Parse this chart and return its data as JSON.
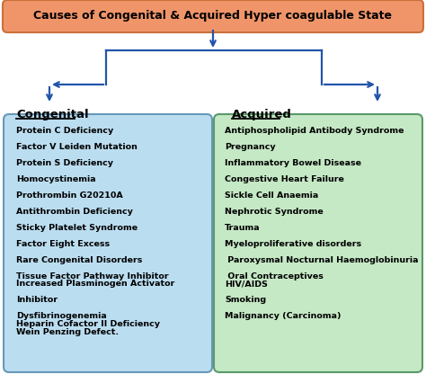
{
  "title": "Causes of Congenital & Acquired Hyper coagulable State",
  "title_bg": "#F0956A",
  "title_border": "#C8713A",
  "congenital_header": "Congenital",
  "acquired_header": "Acquired",
  "congenital_items": [
    "Protein C Deficiency",
    "Factor V Leiden Mutation",
    "Protein S Deficiency",
    "Homocystinemia",
    "Prothrombin G20210A",
    "Antithrombin Deficiency",
    "Sticky Platelet Syndrome",
    "Factor Eight Excess",
    "Rare Congenital Disorders",
    "Tissue Factor Pathway Inhibitor\nIncreased Plasminogen Activator",
    "Inhibitor",
    "Dysfibrinogenemia\nHeparin Cofactor II Deficiency\nWein Penzing Defect."
  ],
  "acquired_items": [
    "Antiphospholipid Antibody Syndrome",
    "Pregnancy",
    "Inflammatory Bowel Disease",
    "Congestive Heart Failure",
    "Sickle Cell Anaemia",
    "Nephrotic Syndrome",
    "Trauma",
    "Myeloproliferative disorders",
    " Paroxysmal Nocturnal Haemoglobinuria",
    " Oral Contraceptives\nHIV/AIDS",
    "Smoking",
    "Malignancy (Carcinoma)"
  ],
  "congenital_box_color": "#BBDDF0",
  "congenital_box_edge": "#6699BB",
  "acquired_box_color": "#C5E8C5",
  "acquired_box_edge": "#5A9A6A",
  "arrow_color": "#2255AA",
  "text_color": "#000000",
  "bg_color": "#FFFFFF",
  "title_fontsize": 9.0,
  "header_fontsize": 9.5,
  "item_fontsize": 6.8
}
